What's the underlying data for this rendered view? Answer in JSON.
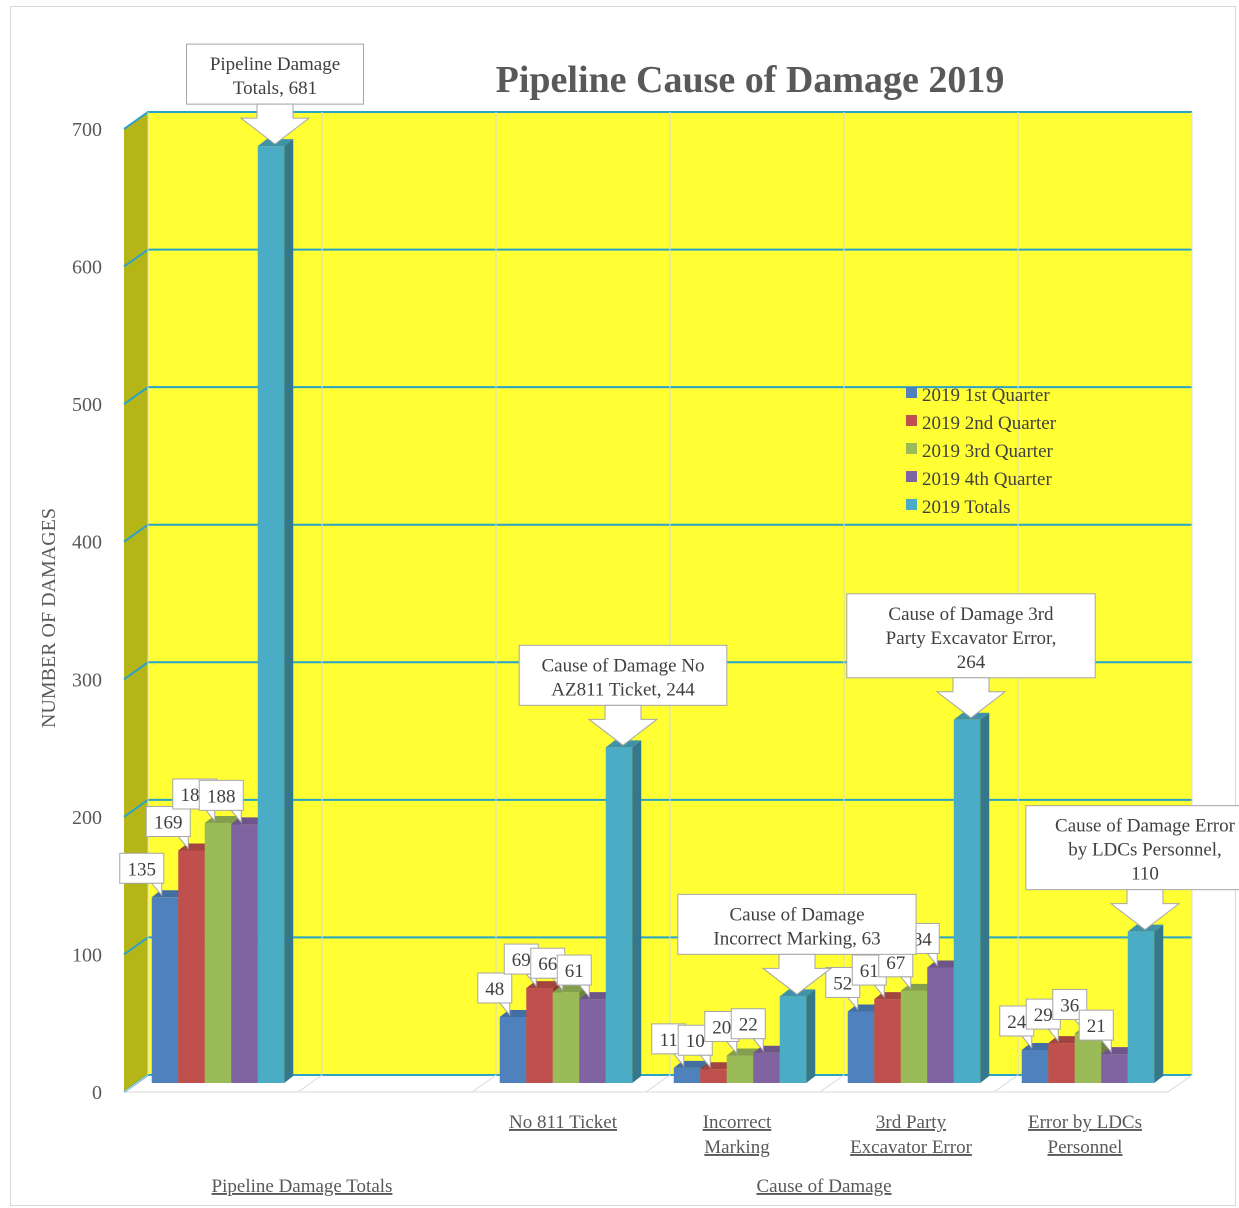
{
  "chart_data": {
    "type": "bar",
    "title": "Pipeline Cause of Damage 2019",
    "ylabel": "NUMBER OF DAMAGES",
    "ylim": [
      0,
      700
    ],
    "yticks": [
      "0",
      "100",
      "200",
      "300",
      "400",
      "500",
      "600",
      "700"
    ],
    "grid": true,
    "legend_position": "right",
    "categories": [
      "",
      "",
      "No 811 Ticket",
      "Incorrect Marking",
      "3rd Party Excavator Error",
      "Error by LDCs Personnel"
    ],
    "category_lines": [
      [],
      [],
      [
        "No 811 Ticket"
      ],
      [
        "Incorrect",
        "Marking"
      ],
      [
        "3rd Party",
        "Excavator Error"
      ],
      [
        "Error by LDCs",
        "Personnel"
      ]
    ],
    "groups": [
      {
        "label": "Pipeline Damage Totals",
        "categories": [
          0,
          1
        ]
      },
      {
        "label": "Cause of Damage",
        "categories": [
          2,
          3,
          4,
          5
        ]
      }
    ],
    "series": [
      {
        "name": "2019 1st Quarter",
        "color": "#4f81bd",
        "values": [
          135,
          null,
          48,
          11,
          52,
          24
        ]
      },
      {
        "name": "2019 2nd Quarter",
        "color": "#c0504d",
        "values": [
          169,
          null,
          69,
          10,
          61,
          29
        ]
      },
      {
        "name": "2019 3rd Quarter",
        "color": "#9bbb59",
        "values": [
          189,
          null,
          66,
          20,
          67,
          36
        ]
      },
      {
        "name": "2019 4th Quarter",
        "color": "#8064a2",
        "values": [
          188,
          null,
          61,
          22,
          84,
          21
        ]
      },
      {
        "name": "2019 Totals",
        "color": "#4bacc6",
        "values": [
          681,
          null,
          244,
          63,
          264,
          110
        ]
      }
    ],
    "callouts": [
      {
        "lines": [
          "Pipeline Damage",
          "Totals, 681"
        ],
        "category": 0,
        "series": 4
      },
      {
        "lines": [
          "Cause of Damage No",
          "AZ811 Ticket, 244"
        ],
        "category": 2,
        "series": 4
      },
      {
        "lines": [
          "Cause of Damage",
          "Incorrect Marking, 63"
        ],
        "category": 3,
        "series": 4
      },
      {
        "lines": [
          "Cause of Damage 3rd",
          "Party Excavator Error,",
          "264"
        ],
        "category": 4,
        "series": 4
      },
      {
        "lines": [
          "Cause of Damage Error",
          "by LDCs Personnel,",
          "110"
        ],
        "category": 5,
        "series": 4
      }
    ],
    "colors": {
      "plot_background": "#ffff33",
      "side_wall": "#b5b517",
      "gridline": "#2aa3c8",
      "axis_text": "#595959"
    }
  }
}
